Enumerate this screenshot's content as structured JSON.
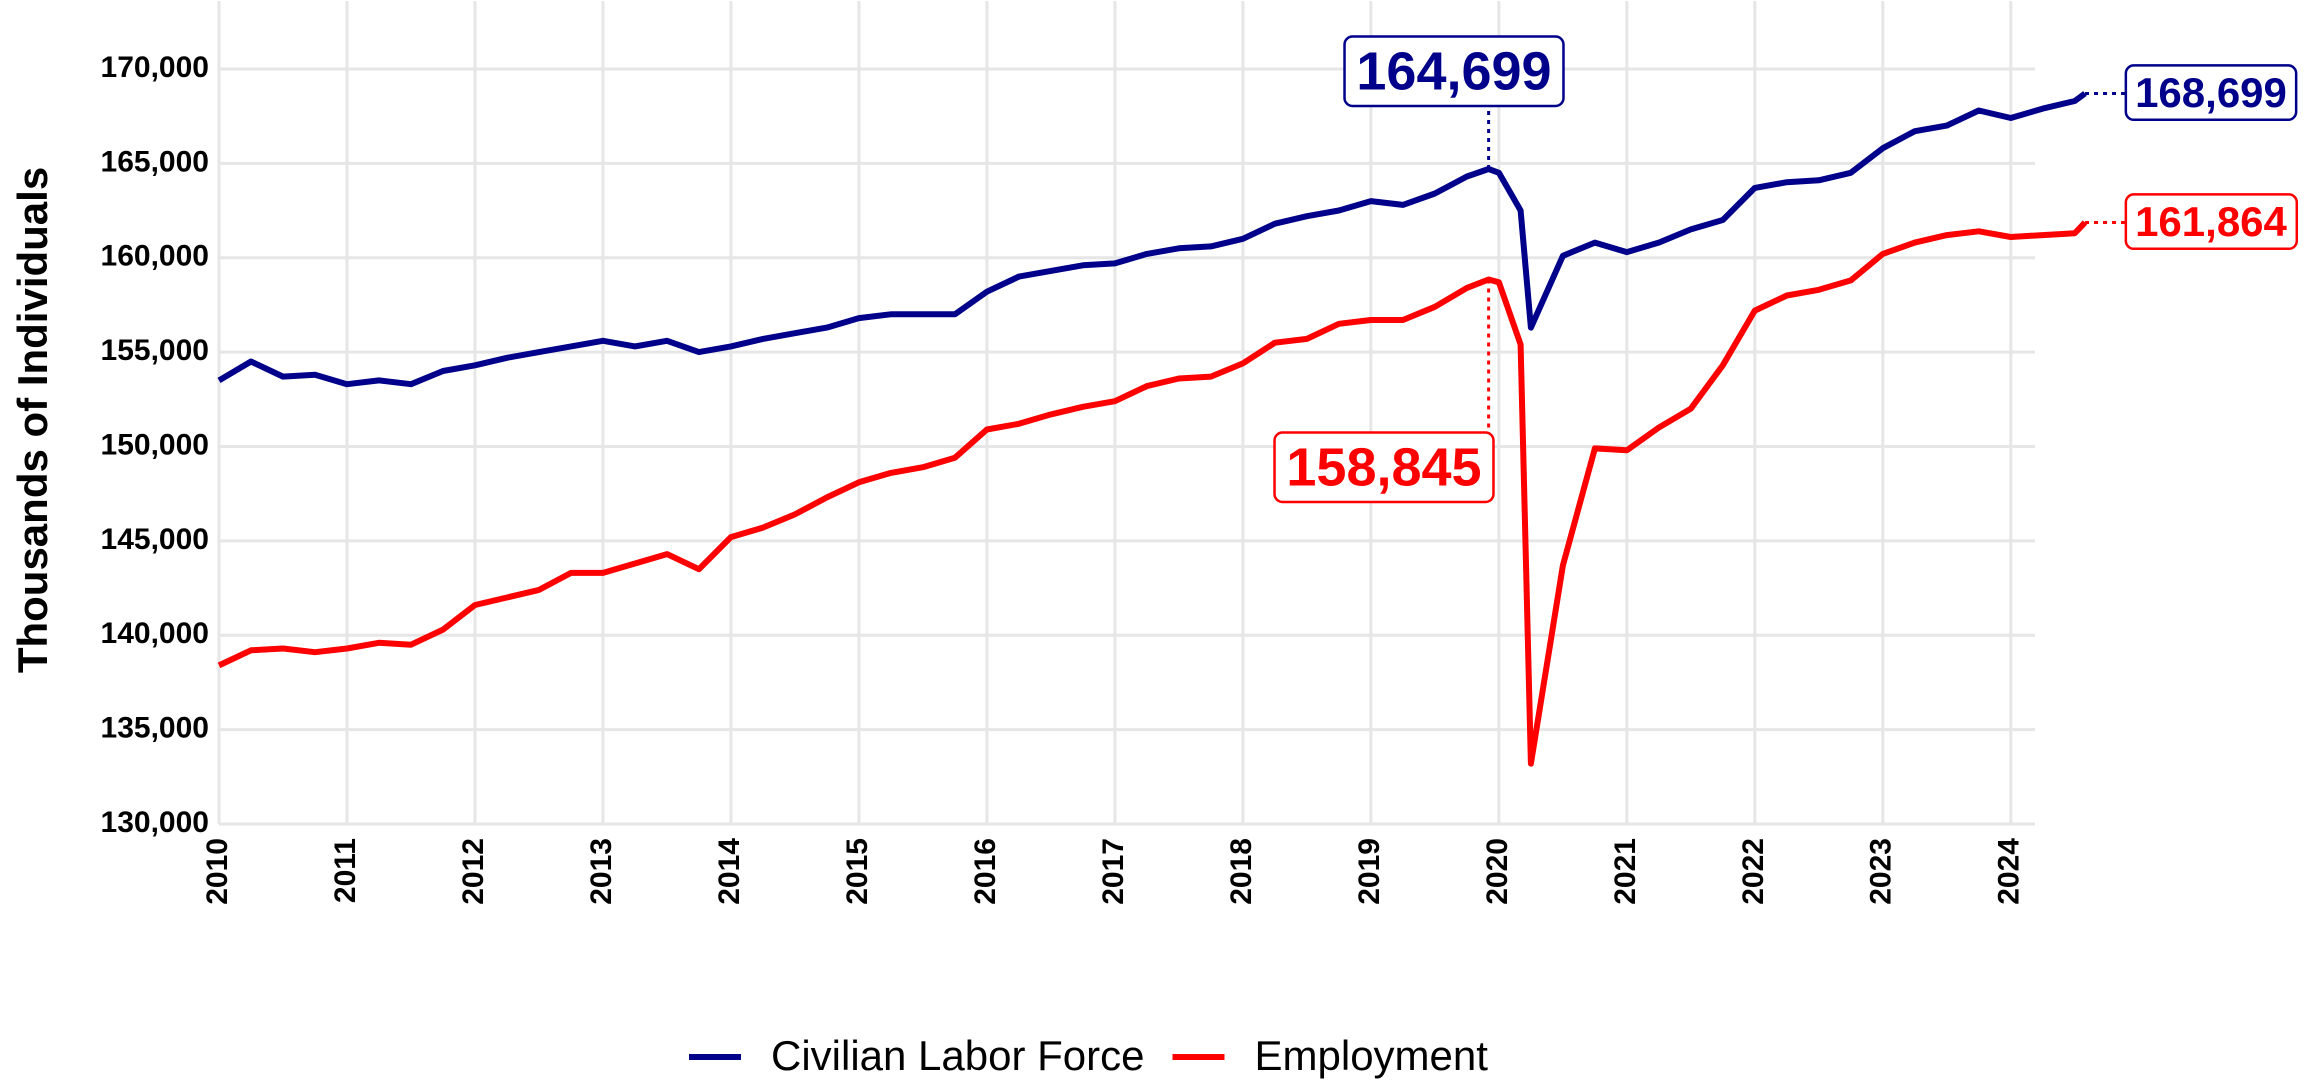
{
  "chart_data": {
    "type": "line",
    "y_label": "Thousands of Individuals",
    "x": [
      2010,
      2010.25,
      2010.5,
      2010.75,
      2011,
      2011.25,
      2011.5,
      2011.75,
      2012,
      2012.25,
      2012.5,
      2012.75,
      2013,
      2013.25,
      2013.5,
      2013.75,
      2014,
      2014.25,
      2014.5,
      2014.75,
      2015,
      2015.25,
      2015.5,
      2015.75,
      2016,
      2016.25,
      2016.5,
      2016.75,
      2017,
      2017.25,
      2017.5,
      2017.75,
      2018,
      2018.25,
      2018.5,
      2018.75,
      2019,
      2019.25,
      2019.5,
      2019.75,
      2019.92,
      2020,
      2020.17,
      2020.25,
      2020.5,
      2020.75,
      2021,
      2021.25,
      2021.5,
      2021.75,
      2022,
      2022.25,
      2022.5,
      2022.75,
      2023,
      2023.25,
      2023.5,
      2023.75,
      2024,
      2024.25,
      2024.5,
      2024.58
    ],
    "series": [
      {
        "name": "Civilian Labor Force",
        "color": "#00008b",
        "values": [
          153500,
          154500,
          153700,
          153800,
          153300,
          153500,
          153300,
          154000,
          154300,
          154700,
          155000,
          155300,
          155600,
          155300,
          155600,
          155000,
          155300,
          155700,
          156000,
          156300,
          156800,
          157000,
          157000,
          157000,
          158200,
          159000,
          159300,
          159600,
          159700,
          160200,
          160500,
          160600,
          161000,
          161800,
          162200,
          162500,
          163000,
          162800,
          163400,
          164300,
          164699,
          164500,
          162500,
          156300,
          160100,
          160800,
          160300,
          160800,
          161500,
          162000,
          163700,
          164000,
          164100,
          164500,
          165800,
          166700,
          167000,
          167800,
          167400,
          167900,
          168300,
          168699
        ]
      },
      {
        "name": "Employment",
        "color": "#ff0000",
        "values": [
          138400,
          139200,
          139300,
          139100,
          139300,
          139600,
          139500,
          140300,
          141600,
          142000,
          142400,
          143300,
          143300,
          143800,
          144300,
          143500,
          145200,
          145700,
          146400,
          147300,
          148100,
          148600,
          148900,
          149400,
          150900,
          151200,
          151700,
          152100,
          152400,
          153200,
          153600,
          153700,
          154400,
          155500,
          155700,
          156500,
          156700,
          156700,
          157400,
          158400,
          158845,
          158700,
          155400,
          133200,
          143700,
          149900,
          149800,
          151000,
          152000,
          154300,
          157200,
          158000,
          158300,
          158800,
          160200,
          160800,
          161200,
          161400,
          161100,
          161200,
          161300,
          161864
        ]
      }
    ],
    "annotations": [
      {
        "x": 2019.92,
        "value": 164699,
        "label": "164,699",
        "color": "#00008b"
      },
      {
        "x": 2024.58,
        "value": 168699,
        "label": "168,699",
        "color": "#00008b"
      },
      {
        "x": 2019.92,
        "value": 158845,
        "label": "158,845",
        "color": "#ff0000"
      },
      {
        "x": 2024.58,
        "value": 161864,
        "label": "161,864",
        "color": "#ff0000"
      }
    ],
    "xlim": [
      2010,
      2024.65
    ],
    "xticks": [
      2010,
      2011,
      2012,
      2013,
      2014,
      2015,
      2016,
      2017,
      2018,
      2019,
      2020,
      2021,
      2022,
      2023,
      2024
    ],
    "ylim": [
      130000,
      173600
    ],
    "yticks": [
      {
        "value": 130000,
        "label": "130,000"
      },
      {
        "value": 135000,
        "label": "135,000"
      },
      {
        "value": 140000,
        "label": "140,000"
      },
      {
        "value": 145000,
        "label": "145,000"
      },
      {
        "value": 150000,
        "label": "150,000"
      },
      {
        "value": 155000,
        "label": "155,000"
      },
      {
        "value": 160000,
        "label": "160,000"
      },
      {
        "value": 165000,
        "label": "165,000"
      },
      {
        "value": 170000,
        "label": "170,000"
      }
    ],
    "grid": true,
    "legend": "bottom"
  }
}
